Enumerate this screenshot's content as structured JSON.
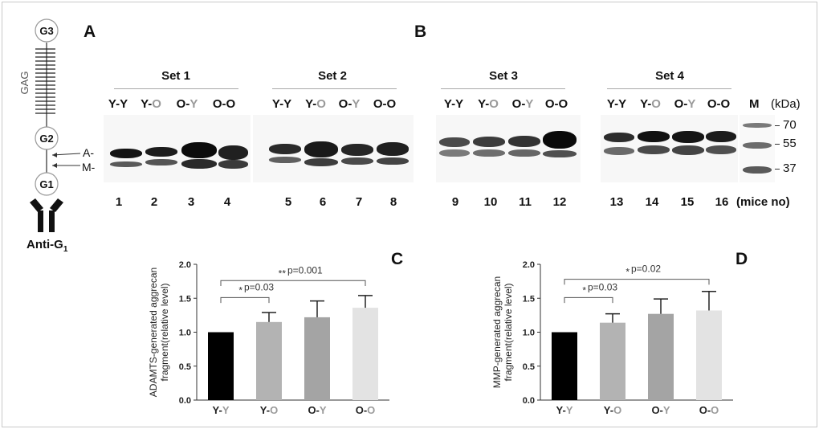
{
  "panels": {
    "A": "A",
    "B": "B",
    "C": "C",
    "D": "D"
  },
  "diagram": {
    "g3": "G3",
    "g2": "G2",
    "g1": "G1",
    "gag": "GAG",
    "a_label": "A-",
    "m_label": "M-",
    "anti_label": "Anti-G",
    "anti_sub": "1"
  },
  "blot": {
    "sets": [
      {
        "title": "Set 1",
        "groups": [
          [
            "Y-",
            "Y"
          ],
          [
            "Y-",
            "O"
          ],
          [
            "O-",
            "Y"
          ],
          [
            "O-",
            "O"
          ]
        ]
      },
      {
        "title": "Set 2",
        "groups": [
          [
            "Y-",
            "Y"
          ],
          [
            "Y-",
            "O"
          ],
          [
            "O-",
            "Y"
          ],
          [
            "O-",
            "O"
          ]
        ]
      },
      {
        "title": "Set 3",
        "groups": [
          [
            "Y-",
            "Y"
          ],
          [
            "Y-",
            "O"
          ],
          [
            "O-",
            "Y"
          ],
          [
            "O-",
            "O"
          ]
        ]
      },
      {
        "title": "Set 4",
        "groups": [
          [
            "Y-",
            "Y"
          ],
          [
            "Y-",
            "O"
          ],
          [
            "O-",
            "Y"
          ],
          [
            "O-",
            "O"
          ]
        ]
      }
    ],
    "marker_label": "M",
    "kda_label": "(kDa)",
    "mw": [
      "70",
      "55",
      "37"
    ],
    "lanes": [
      "1",
      "2",
      "3",
      "4",
      "5",
      "6",
      "7",
      "8",
      "9",
      "10",
      "11",
      "12",
      "13",
      "14",
      "15",
      "16"
    ],
    "lanes_label": "(mice no)"
  },
  "gray_color": "#9a9a9a",
  "chart_data": [
    {
      "type": "bar",
      "panel": "C",
      "ylabel_lines": [
        "ADAMTS-generated aggrecan",
        "fragment(relative level)"
      ],
      "categories": [
        [
          "Y-",
          "Y"
        ],
        [
          "Y-",
          "O"
        ],
        [
          "O-",
          "Y"
        ],
        [
          "O-",
          "O"
        ]
      ],
      "values": [
        1.0,
        1.15,
        1.22,
        1.36
      ],
      "errors": [
        0,
        0.14,
        0.24,
        0.18
      ],
      "colors": [
        "#000000",
        "#b3b3b3",
        "#a4a4a4",
        "#e3e3e3"
      ],
      "ylim": [
        0,
        2.0
      ],
      "yticks": [
        "0.0",
        "0.5",
        "1.0",
        "1.5",
        "2.0"
      ],
      "annotations": [
        {
          "from": 0,
          "to": 1,
          "stars": "*",
          "text": "p=0.03",
          "level": 1.51
        },
        {
          "from": 0,
          "to": 3,
          "stars": "**",
          "text": "p=0.001",
          "level": 1.76
        }
      ]
    },
    {
      "type": "bar",
      "panel": "D",
      "ylabel_lines": [
        "MMP-generated aggrecan",
        "fragment(relative level)"
      ],
      "categories": [
        [
          "Y-",
          "Y"
        ],
        [
          "Y-",
          "O"
        ],
        [
          "O-",
          "Y"
        ],
        [
          "O-",
          "O"
        ]
      ],
      "values": [
        1.0,
        1.14,
        1.27,
        1.32
      ],
      "errors": [
        0,
        0.13,
        0.22,
        0.28
      ],
      "colors": [
        "#000000",
        "#b3b3b3",
        "#a4a4a4",
        "#e3e3e3"
      ],
      "ylim": [
        0,
        2.0
      ],
      "yticks": [
        "0.0",
        "0.5",
        "1.0",
        "1.5",
        "2.0"
      ],
      "annotations": [
        {
          "from": 0,
          "to": 1,
          "stars": "*",
          "text": "p=0.03",
          "level": 1.51
        },
        {
          "from": 0,
          "to": 3,
          "stars": "*",
          "text": "p=0.02",
          "level": 1.78
        }
      ]
    }
  ]
}
